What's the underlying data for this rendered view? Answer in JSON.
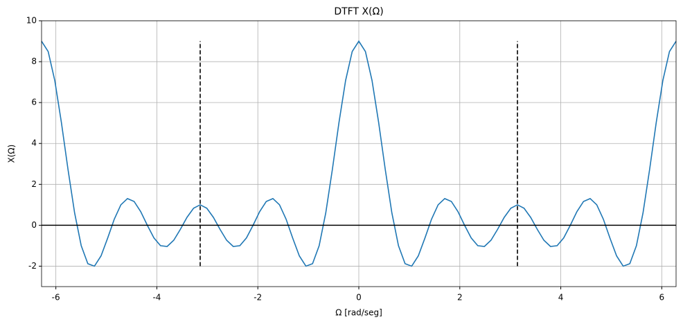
{
  "chart_data": {
    "type": "line",
    "title": "DTFT X(Ω)",
    "xlabel": "Ω [rad/seg]",
    "ylabel": "X(Ω)",
    "xlim": [
      -6.2832,
      6.2832
    ],
    "xticks": [
      -6,
      -4,
      -2,
      0,
      2,
      4,
      6
    ],
    "ylim": [
      -3,
      10
    ],
    "yticks": [
      -2,
      0,
      2,
      4,
      6,
      8,
      10
    ],
    "grid": true,
    "series": [
      {
        "color": "#1f77b4",
        "dash": "solid",
        "x": [
          -6.2832,
          -6.1523,
          -6.0214,
          -5.8905,
          -5.7596,
          -5.6287,
          -5.4978,
          -5.3669,
          -5.236,
          -5.1051,
          -4.9742,
          -4.8433,
          -4.7124,
          -4.5815,
          -4.4506,
          -4.3197,
          -4.1888,
          -4.0579,
          -3.927,
          -3.7961,
          -3.6652,
          -3.5343,
          -3.4034,
          -3.2725,
          -3.1416,
          -3.0107,
          -2.8798,
          -2.7489,
          -2.618,
          -2.4871,
          -2.3562,
          -2.2253,
          -2.0944,
          -1.9635,
          -1.8326,
          -1.7017,
          -1.5708,
          -1.4399,
          -1.309,
          -1.1781,
          -1.0472,
          -0.9163,
          -0.7854,
          -0.6545,
          -0.5236,
          -0.3927,
          -0.2618,
          -0.1309,
          0,
          0.1309,
          0.2618,
          0.3927,
          0.5236,
          0.6545,
          0.7854,
          0.9163,
          1.0472,
          1.1781,
          1.309,
          1.4399,
          1.5708,
          1.7017,
          1.8326,
          1.9635,
          2.0944,
          2.2253,
          2.3562,
          2.4871,
          2.618,
          2.7489,
          2.8798,
          3.0107,
          3.1416,
          3.2725,
          3.4034,
          3.5343,
          3.6652,
          3.7961,
          3.927,
          4.0579,
          4.1888,
          4.3197,
          4.4506,
          4.5815,
          4.7124,
          4.8433,
          4.9742,
          5.1051,
          5.236,
          5.3669,
          5.4978,
          5.6287,
          5.7596,
          5.8905,
          6.0214,
          6.1523,
          6.2832
        ],
        "values": [
          9,
          8.495,
          7.078,
          5.027,
          2.732,
          0.607,
          -1,
          -1.88,
          -2,
          -1.497,
          -0.629,
          0.296,
          1,
          1.305,
          1.165,
          0.668,
          0,
          -0.619,
          -1,
          -1.036,
          -0.732,
          -0.199,
          0.386,
          0.833,
          1,
          0.833,
          0.386,
          -0.199,
          -0.732,
          -1.036,
          -1,
          -0.619,
          0,
          0.668,
          1.165,
          1.305,
          1,
          0.296,
          -0.629,
          -1.497,
          -2,
          -1.88,
          -1,
          0.607,
          2.732,
          5.027,
          7.078,
          8.495,
          9,
          8.495,
          7.078,
          5.027,
          2.732,
          0.607,
          -1,
          -1.88,
          -2,
          -1.497,
          -0.629,
          0.296,
          1,
          1.305,
          1.165,
          0.668,
          0,
          -0.619,
          -1,
          -1.036,
          -0.732,
          -0.199,
          0.386,
          0.833,
          1,
          0.833,
          0.386,
          -0.199,
          -0.732,
          -1.036,
          -1,
          -0.619,
          0,
          0.668,
          1.165,
          1.305,
          1,
          0.296,
          -0.629,
          -1.497,
          -2,
          -1.88,
          -1,
          0.607,
          2.732,
          5.027,
          7.078,
          8.495,
          9
        ]
      },
      {
        "color": "#000000",
        "dash": "dashed",
        "x": [
          -3.1416,
          -3.1416
        ],
        "values": [
          -2,
          9
        ]
      },
      {
        "color": "#000000",
        "dash": "dashed",
        "x": [
          3.1416,
          3.1416
        ],
        "values": [
          -2,
          9
        ]
      },
      {
        "color": "#000000",
        "dash": "solid",
        "x": [
          -6.2832,
          6.2832
        ],
        "values": [
          0,
          0
        ]
      }
    ]
  }
}
